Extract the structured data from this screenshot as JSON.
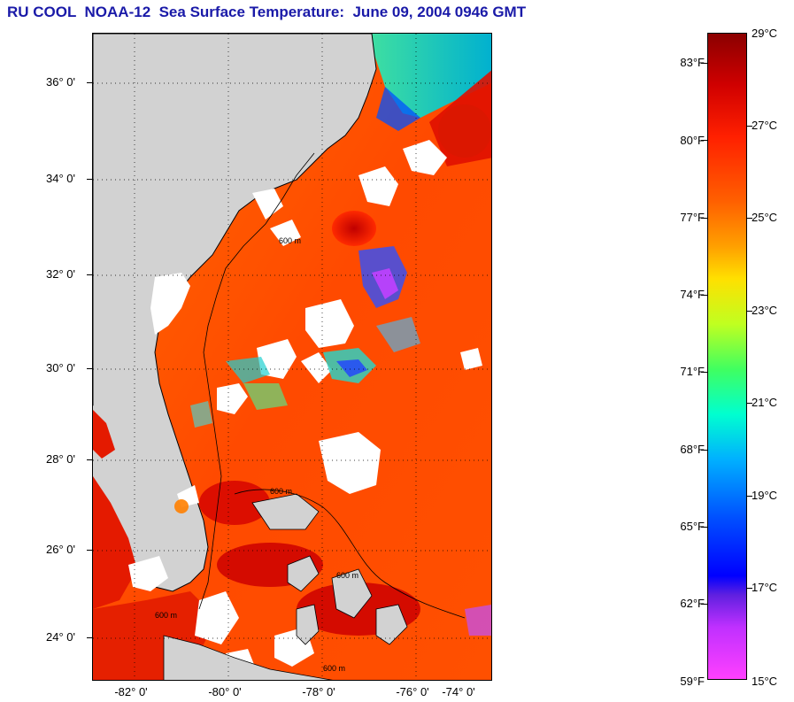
{
  "title": "RU COOL  NOAA-12  Sea Surface Temperature:  June 09, 2004 0946 GMT",
  "map": {
    "lat_labels": [
      "36° 0'",
      "34° 0'",
      "32° 0'",
      "30° 0'",
      "28° 0'",
      "26° 0'",
      "24° 0'"
    ],
    "lon_labels": [
      "-82° 0'",
      "-80° 0'",
      "-78° 0'",
      "-76° 0'",
      "-74° 0'"
    ],
    "contour_labels": [
      "600 m",
      "600 m",
      "600 m",
      "600 m",
      "600 m"
    ],
    "colors": {
      "land": "#d2d2d2",
      "cloud": "#ffffff",
      "warm_sea": "#ff3a00",
      "hot_sea": "#d40000",
      "coastline": "#000000"
    }
  },
  "colorbar": {
    "fahrenheit_labels": [
      "83°F",
      "80°F",
      "77°F",
      "74°F",
      "71°F",
      "68°F",
      "65°F",
      "62°F",
      "59°F"
    ],
    "celsius_labels": [
      "29°C",
      "27°C",
      "25°C",
      "23°C",
      "21°C",
      "19°C",
      "17°C",
      "15°C"
    ],
    "range_c": [
      15,
      29
    ]
  }
}
